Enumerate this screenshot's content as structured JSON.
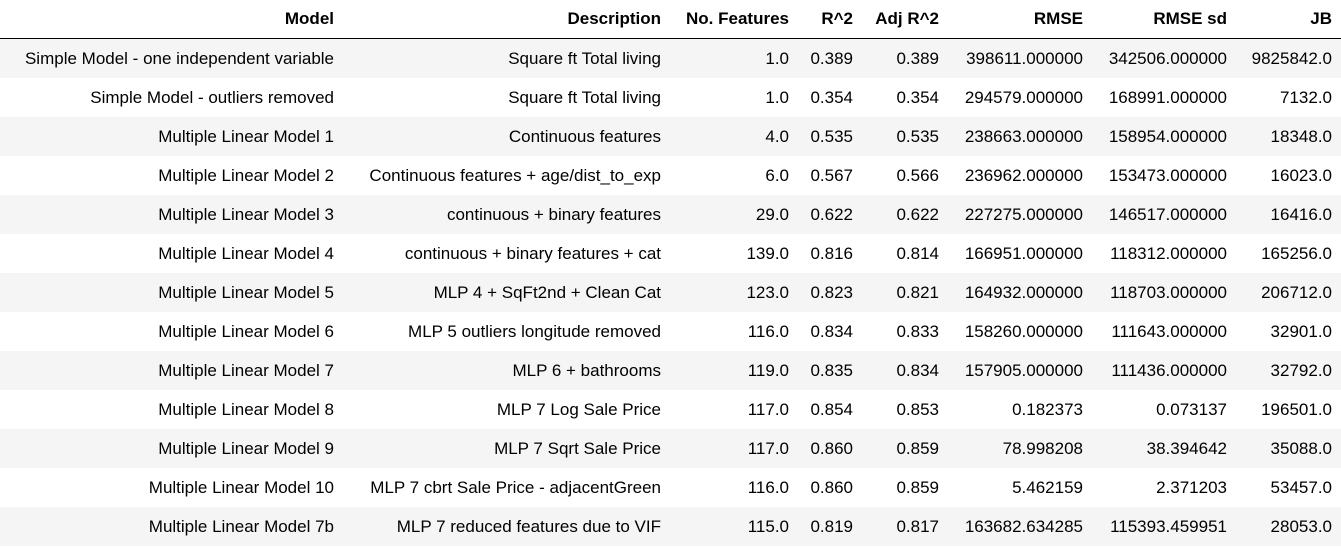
{
  "chart_data": {
    "type": "table",
    "columns": [
      "Model",
      "Description",
      "No. Features",
      "R^2",
      "Adj R^2",
      "RMSE",
      "RMSE sd",
      "JB"
    ],
    "rows": [
      [
        "Simple Model - one independent variable",
        "Square ft Total living",
        "1.0",
        "0.389",
        "0.389",
        "398611.000000",
        "342506.000000",
        "9825842.0"
      ],
      [
        "Simple Model - outliers removed",
        "Square ft Total living",
        "1.0",
        "0.354",
        "0.354",
        "294579.000000",
        "168991.000000",
        "7132.0"
      ],
      [
        "Multiple Linear Model 1",
        "Continuous features",
        "4.0",
        "0.535",
        "0.535",
        "238663.000000",
        "158954.000000",
        "18348.0"
      ],
      [
        "Multiple Linear Model 2",
        "Continuous features + age/dist_to_exp",
        "6.0",
        "0.567",
        "0.566",
        "236962.000000",
        "153473.000000",
        "16023.0"
      ],
      [
        "Multiple Linear Model 3",
        "continuous + binary features",
        "29.0",
        "0.622",
        "0.622",
        "227275.000000",
        "146517.000000",
        "16416.0"
      ],
      [
        "Multiple Linear Model 4",
        "continuous + binary features + cat",
        "139.0",
        "0.816",
        "0.814",
        "166951.000000",
        "118312.000000",
        "165256.0"
      ],
      [
        "Multiple Linear Model 5",
        "MLP 4 + SqFt2nd + Clean Cat",
        "123.0",
        "0.823",
        "0.821",
        "164932.000000",
        "118703.000000",
        "206712.0"
      ],
      [
        "Multiple Linear Model 6",
        "MLP 5 outliers longitude removed",
        "116.0",
        "0.834",
        "0.833",
        "158260.000000",
        "111643.000000",
        "32901.0"
      ],
      [
        "Multiple Linear Model 7",
        "MLP 6 + bathrooms",
        "119.0",
        "0.835",
        "0.834",
        "157905.000000",
        "111436.000000",
        "32792.0"
      ],
      [
        "Multiple Linear Model 8",
        "MLP 7 Log Sale Price",
        "117.0",
        "0.854",
        "0.853",
        "0.182373",
        "0.073137",
        "196501.0"
      ],
      [
        "Multiple Linear Model 9",
        "MLP 7 Sqrt Sale Price",
        "117.0",
        "0.860",
        "0.859",
        "78.998208",
        "38.394642",
        "35088.0"
      ],
      [
        "Multiple Linear Model 10",
        "MLP 7 cbrt Sale Price - adjacentGreen",
        "116.0",
        "0.860",
        "0.859",
        "5.462159",
        "2.371203",
        "53457.0"
      ],
      [
        "Multiple Linear Model 7b",
        "MLP 7 reduced features due to VIF",
        "115.0",
        "0.819",
        "0.817",
        "163682.634285",
        "115393.459951",
        "28053.0"
      ]
    ]
  }
}
